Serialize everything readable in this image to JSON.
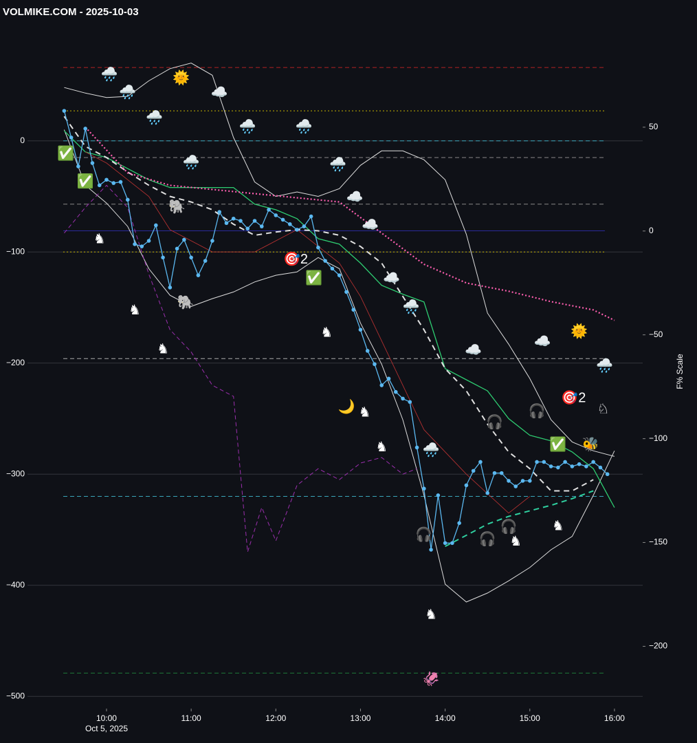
{
  "chart_data": {
    "type": "line",
    "title": "VOLMIKE.COM  - 2025-10-03",
    "x_sublabel": "Oct 5, 2025",
    "y2label": "F% Scale",
    "xlim": [
      "09:04",
      "16:20"
    ],
    "xticks": [
      "10:00",
      "11:00",
      "12:00",
      "13:00",
      "14:00",
      "15:00",
      "16:00"
    ],
    "ylim": [
      -511,
      102
    ],
    "yticks": [
      {
        "value": 0,
        "label": "0"
      },
      {
        "value": -100,
        "label": "−100"
      },
      {
        "value": -200,
        "label": "−200"
      },
      {
        "value": -300,
        "label": "−300"
      },
      {
        "value": -400,
        "label": "−400"
      },
      {
        "value": -500,
        "label": "−500"
      }
    ],
    "y2lim": [
      -230,
      98
    ],
    "y2ticks": [
      50,
      {
        "value": 0,
        "label": "0"
      },
      {
        "value": -50,
        "label": "−50"
      },
      {
        "value": -100,
        "label": "−100"
      },
      {
        "value": -150,
        "label": "−150"
      },
      {
        "value": -200,
        "label": "−200"
      }
    ],
    "grid": true,
    "x": [
      "09:30",
      "09:35",
      "09:40",
      "09:45",
      "09:50",
      "09:55",
      "10:00",
      "10:05",
      "10:10",
      "10:15",
      "10:20",
      "10:25",
      "10:30",
      "10:35",
      "10:40",
      "10:45",
      "10:50",
      "10:55",
      "11:00",
      "11:05",
      "11:10",
      "11:15",
      "11:20",
      "11:25",
      "11:30",
      "11:35",
      "11:40",
      "11:45",
      "11:50",
      "11:55",
      "12:00",
      "12:05",
      "12:10",
      "12:15",
      "12:20",
      "12:25",
      "12:30",
      "12:35",
      "12:40",
      "12:45",
      "12:50",
      "12:55",
      "13:00",
      "13:05",
      "13:10",
      "13:15",
      "13:20",
      "13:25",
      "13:30",
      "13:35",
      "13:40",
      "13:45",
      "13:50",
      "13:55",
      "14:00",
      "14:05",
      "14:10",
      "14:15",
      "14:20",
      "14:25",
      "14:30",
      "14:35",
      "14:40",
      "14:45",
      "14:50",
      "14:55",
      "15:00",
      "15:05",
      "15:10",
      "15:15",
      "15:20",
      "15:25",
      "15:30",
      "15:35",
      "15:40",
      "15:45",
      "15:50",
      "15:55"
    ],
    "hlines": [
      {
        "value": 66,
        "color": "#b22222",
        "dash": "dashed"
      },
      {
        "value": 27,
        "color": "#c8b400",
        "dash": "dotted"
      },
      {
        "value": 0,
        "color": "#3aa6b9",
        "dash": "dashed"
      },
      {
        "value": -15,
        "color": "#888888",
        "dash": "dashed"
      },
      {
        "value": -57,
        "color": "#888888",
        "dash": "dashed"
      },
      {
        "value": -81,
        "color": "#2a2a9a",
        "dash": "solid"
      },
      {
        "value": -100,
        "color": "#c8b400",
        "dash": "dotted"
      },
      {
        "value": -196,
        "color": "#aaaaaa",
        "dash": "dashed"
      },
      {
        "value": -320,
        "color": "#3aa6b9",
        "dash": "dashed"
      },
      {
        "value": -479,
        "color": "#1f7a3a",
        "dash": "dashed"
      }
    ],
    "series": [
      {
        "color": "#dddddd",
        "dash": "solid",
        "width": 1,
        "x": [
          "09:30",
          "09:45",
          "10:00",
          "10:15",
          "10:30",
          "10:45",
          "11:00",
          "11:15",
          "11:30",
          "11:45",
          "12:00",
          "12:15",
          "12:30",
          "12:45",
          "13:00",
          "13:15",
          "13:30",
          "13:45",
          "14:00",
          "14:15",
          "14:30",
          "14:45",
          "15:00",
          "15:15",
          "15:30",
          "15:45",
          "16:00"
        ],
        "values": [
          48,
          43,
          39,
          40,
          54,
          65,
          70,
          59,
          3,
          -37,
          -50,
          -46,
          -50,
          -43,
          -22,
          -9,
          -9,
          -17,
          -35,
          -84,
          -155,
          -183,
          -214,
          -251,
          -271,
          -279,
          -284
        ]
      },
      {
        "color": "#dddddd",
        "dash": "solid",
        "width": 1,
        "x": [
          "09:30",
          "09:45",
          "10:00",
          "10:15",
          "10:30",
          "10:45",
          "11:00",
          "11:15",
          "11:30",
          "11:45",
          "12:00",
          "12:15",
          "12:30",
          "12:45",
          "13:00",
          "13:15",
          "13:30",
          "13:45",
          "14:00",
          "14:15",
          "14:30",
          "14:45",
          "15:00",
          "15:15",
          "15:30",
          "15:45",
          "16:00"
        ],
        "values": [
          10,
          -40,
          -56,
          -77,
          -115,
          -139,
          -149,
          -142,
          -136,
          -127,
          -121,
          -118,
          -105,
          -115,
          -164,
          -201,
          -251,
          -319,
          -399,
          -415,
          -407,
          -396,
          -384,
          -368,
          -356,
          -319,
          -279
        ]
      },
      {
        "color": "#2ecc71",
        "dash": "solid",
        "width": 1.3,
        "x": [
          "09:30",
          "09:45",
          "10:00",
          "10:15",
          "10:30",
          "10:45",
          "11:00",
          "11:15",
          "11:30",
          "11:45",
          "12:00",
          "12:15",
          "12:30",
          "12:45",
          "13:00",
          "13:15",
          "13:30",
          "13:45",
          "14:00",
          "14:15",
          "14:30",
          "14:45",
          "15:00",
          "15:15",
          "15:30",
          "15:45",
          "16:00"
        ],
        "values": [
          9,
          -10,
          -15,
          -25,
          -35,
          -42,
          -42,
          -42,
          -42,
          -57,
          -62,
          -70,
          -88,
          -93,
          -110,
          -130,
          -138,
          -145,
          -205,
          -215,
          -225,
          -250,
          -265,
          -270,
          -280,
          -295,
          -330
        ]
      },
      {
        "color": "#b03030",
        "dash": "solid",
        "width": 0.9,
        "x": [
          "09:45",
          "10:00",
          "10:30",
          "10:45",
          "11:15",
          "11:45",
          "12:15",
          "12:45",
          "13:00",
          "13:15",
          "13:45",
          "14:15",
          "14:45",
          "15:00"
        ],
        "values": [
          -10,
          -20,
          -50,
          -80,
          -100,
          -100,
          -80,
          -110,
          -140,
          -180,
          -260,
          -300,
          -335,
          -320
        ]
      },
      {
        "color": "#9b2fae",
        "dash": "dashed",
        "width": 1,
        "x": [
          "09:30",
          "09:45",
          "10:00",
          "10:15",
          "10:30",
          "10:45",
          "11:00",
          "11:15",
          "11:30",
          "11:40",
          "11:50",
          "12:00",
          "12:15",
          "12:30",
          "12:45",
          "13:00",
          "13:15",
          "13:30",
          "13:40"
        ],
        "values": [
          -83,
          -60,
          -40,
          -60,
          -120,
          -170,
          -190,
          -220,
          -230,
          -370,
          -330,
          -360,
          -310,
          -295,
          -305,
          -290,
          -285,
          -300,
          -295
        ]
      },
      {
        "color": "#e0e0e0",
        "dash": "bigdash",
        "width": 2,
        "x": [
          "09:30",
          "09:45",
          "10:00",
          "10:15",
          "10:30",
          "10:45",
          "11:00",
          "11:15",
          "11:30",
          "11:45",
          "12:00",
          "12:15",
          "12:30",
          "12:45",
          "13:00",
          "13:15",
          "13:30",
          "13:45",
          "14:00",
          "14:15",
          "14:30",
          "14:45",
          "15:00",
          "15:15",
          "15:30",
          "15:45",
          "16:00"
        ],
        "values": [
          22,
          -5,
          -15,
          -28,
          -40,
          -50,
          -55,
          -62,
          -75,
          -85,
          -82,
          -80,
          -81,
          -85,
          -95,
          -110,
          -140,
          -170,
          -205,
          -225,
          -255,
          -280,
          -295,
          -315,
          -315,
          -305,
          null
        ]
      },
      {
        "color": "#2fd0a0",
        "dash": "bigdash",
        "width": 2,
        "x": [
          "14:00",
          "14:15",
          "14:30",
          "14:45",
          "15:00",
          "15:15",
          "15:30",
          "15:45"
        ],
        "values": [
          -365,
          -355,
          -345,
          -338,
          -333,
          -328,
          -322,
          -315
        ]
      },
      {
        "color": "#ff5fb0",
        "dash": "dotted",
        "width": 2.2,
        "axis": "y2",
        "x": [
          "09:45",
          "10:15",
          "10:45",
          "11:15",
          "11:45",
          "12:15",
          "12:45",
          "13:15",
          "13:45",
          "14:15",
          "14:45",
          "15:15",
          "15:45",
          "16:00"
        ],
        "values": [
          50,
          28,
          22,
          20,
          18,
          16,
          14,
          -1,
          -16,
          -25,
          -29,
          -34,
          -38,
          -43
        ]
      },
      {
        "color": "#5bb8f0",
        "dash": "solid",
        "width": 1.3,
        "markers": true,
        "values": [
          27,
          3,
          -23,
          11,
          -20,
          -40,
          -35,
          -38,
          -37,
          -53,
          -93,
          -95,
          -90,
          -76,
          -105,
          -132,
          -97,
          -89,
          -105,
          -121,
          -108,
          -90,
          -64,
          -74,
          -70,
          -72,
          -79,
          -72,
          -77,
          -62,
          -67,
          -71,
          -75,
          -80,
          -77,
          -68,
          -96,
          -108,
          -115,
          -121,
          -136,
          -152,
          -170,
          -189,
          -201,
          -220,
          -214,
          -226,
          -232,
          -235,
          -276,
          -313,
          -368,
          -319,
          -362,
          -362,
          -344,
          -310,
          -297,
          -289,
          -317,
          -299,
          -299,
          -306,
          -311,
          -306,
          -306,
          -289,
          -289,
          -293,
          -294,
          -289,
          -293,
          -291,
          -293,
          -289,
          -294,
          -300
        ]
      }
    ],
    "emoji": [
      {
        "text": "🌞",
        "x": "10:53",
        "y": 56,
        "color": "#ffcc33"
      },
      {
        "text": "🌞",
        "x": "15:35",
        "y": -172,
        "color": "#ffcc33"
      },
      {
        "text": "🌧️",
        "x": "10:02",
        "y": 59,
        "color": "#ffffff"
      },
      {
        "text": "🌧️",
        "x": "10:15",
        "y": 43,
        "color": "#ffffff"
      },
      {
        "text": "🌧️",
        "x": "10:34",
        "y": 20,
        "color": "#ffffff"
      },
      {
        "text": "🌧️",
        "x": "11:00",
        "y": -20,
        "color": "#ffffff"
      },
      {
        "text": "☁️",
        "x": "11:20",
        "y": 43,
        "color": "#ffffff"
      },
      {
        "text": "🌧️",
        "x": "11:40",
        "y": 12,
        "color": "#ffffff"
      },
      {
        "text": "🌧️",
        "x": "12:20",
        "y": 12,
        "color": "#ffffff"
      },
      {
        "text": "🌧️",
        "x": "12:44",
        "y": -22,
        "color": "#ffffff"
      },
      {
        "text": "☁️",
        "x": "12:56",
        "y": -51,
        "color": "#ffffff"
      },
      {
        "text": "☁️",
        "x": "13:07",
        "y": -76,
        "color": "#ffffff"
      },
      {
        "text": "☁️",
        "x": "13:22",
        "y": -124,
        "color": "#ffffff"
      },
      {
        "text": "🌧️",
        "x": "13:36",
        "y": -150,
        "color": "#ffffff"
      },
      {
        "text": "☁️",
        "x": "14:20",
        "y": -189,
        "color": "#ffffff"
      },
      {
        "text": "☁️",
        "x": "15:09",
        "y": -181,
        "color": "#ffffff"
      },
      {
        "text": "🌧️",
        "x": "15:53",
        "y": -203,
        "color": "#ffffff"
      },
      {
        "text": "🌧️",
        "x": "13:50",
        "y": -279,
        "color": "#ffffff"
      },
      {
        "text": "🐘",
        "x": "10:56",
        "y": -146,
        "color": "#aaaaaa"
      },
      {
        "text": "🐘",
        "x": "10:50",
        "y": -60,
        "color": "#aaaaaa"
      },
      {
        "text": "♞",
        "x": "09:55",
        "y": -89,
        "color": "#ff1a1a"
      },
      {
        "text": "♞",
        "x": "10:20",
        "y": -153,
        "color": "#ff1a1a"
      },
      {
        "text": "♞",
        "x": "10:40",
        "y": -188,
        "color": "#ff1a1a"
      },
      {
        "text": "♞",
        "x": "12:36",
        "y": -173,
        "color": "#ff1a1a"
      },
      {
        "text": "♞",
        "x": "13:03",
        "y": -245,
        "color": "#ff1a1a"
      },
      {
        "text": "♞",
        "x": "13:15",
        "y": -276,
        "color": "#ff1a1a"
      },
      {
        "text": "♞",
        "x": "13:50",
        "y": -427,
        "color": "#ff1a1a"
      },
      {
        "text": "♞",
        "x": "14:50",
        "y": -361,
        "color": "#ff1a1a"
      },
      {
        "text": "♞",
        "x": "15:20",
        "y": -347,
        "color": "#ff1a1a"
      },
      {
        "text": "♘",
        "x": "15:52",
        "y": -242,
        "color": "#1faa3a"
      },
      {
        "text": "🎯2",
        "x": "12:14",
        "y": -107,
        "color": "#ffffff"
      },
      {
        "text": "🎯2",
        "x": "15:31",
        "y": -232,
        "color": "#ffffff"
      },
      {
        "text": "✅",
        "x": "09:31",
        "y": -12,
        "color": "#22cc44"
      },
      {
        "text": "✅",
        "x": "09:45",
        "y": -37,
        "color": "#22cc44"
      },
      {
        "text": "✅",
        "x": "12:27",
        "y": -124,
        "color": "#22cc44"
      },
      {
        "text": "✅",
        "x": "15:20",
        "y": -274,
        "color": "#22cc44"
      },
      {
        "text": "🎧",
        "x": "15:05",
        "y": -244,
        "color": "#dddddd"
      },
      {
        "text": "🎧",
        "x": "14:35",
        "y": -254,
        "color": "#dddddd"
      },
      {
        "text": "🎧",
        "x": "13:45",
        "y": -355,
        "color": "#dddddd"
      },
      {
        "text": "🎧",
        "x": "14:30",
        "y": -359,
        "color": "#dddddd"
      },
      {
        "text": "🎧",
        "x": "14:45",
        "y": -348,
        "color": "#dddddd"
      },
      {
        "text": "🌙",
        "x": "12:50",
        "y": -240,
        "color": "#ffcc33"
      },
      {
        "text": "🦑",
        "x": "13:50",
        "y": -485,
        "color": "#e05030"
      },
      {
        "text": "🐝",
        "x": "15:43",
        "y": -274,
        "color": "#ffcc33"
      }
    ]
  }
}
